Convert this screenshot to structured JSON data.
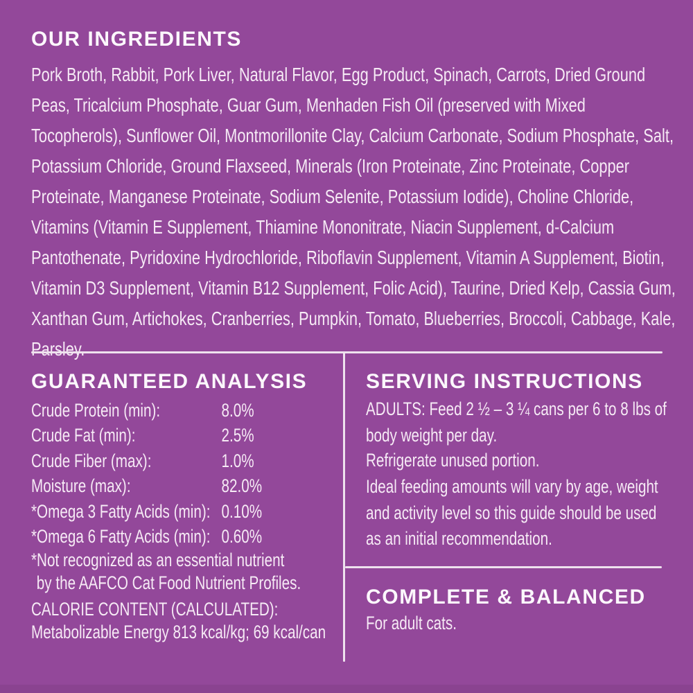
{
  "colors": {
    "background_purple": "#93489A",
    "body_text": "#F6EAF5",
    "heading_text": "#FCF7FC",
    "divider": "#EFE2EE",
    "bottom_edge_shade": "#8A4390"
  },
  "ingredients": {
    "heading": "OUR INGREDIENTS",
    "text": "Pork Broth, Rabbit, Pork Liver, Natural Flavor, Egg Product, Spinach, Carrots, Dried Ground Peas, Tricalcium Phosphate, Guar Gum, Menhaden Fish Oil (preserved with Mixed Tocopherols), Sunflower Oil, Montmorillonite Clay, Calcium Carbonate, Sodium Phosphate, Salt, Potassium Chloride, Ground Flaxseed, Minerals (Iron Proteinate, Zinc Proteinate, Copper Proteinate, Manganese Proteinate, Sodium Selenite, Potassium Iodide), Choline Chloride, Vitamins (Vitamin E Supplement, Thiamine Mononitrate, Niacin Supplement, d-Calcium Pantothenate, Pyridoxine Hydrochloride, Riboflavin Supplement, Vitamin A Supplement, Biotin, Vitamin D3 Supplement, Vitamin B12 Supplement, Folic Acid), Taurine, Dried Kelp, Cassia Gum, Xanthan Gum, Artichokes, Cranberries, Pumpkin, Tomato, Blueberries, Broccoli, Cabbage, Kale, Parsley."
  },
  "guaranteed_analysis": {
    "heading": "GUARANTEED ANALYSIS",
    "rows": [
      {
        "label": "Crude Protein (min):",
        "value": "8.0%"
      },
      {
        "label": "Crude Fat (min):",
        "value": "2.5%"
      },
      {
        "label": "Crude Fiber (max):",
        "value": "1.0%"
      },
      {
        "label": "Moisture (max):",
        "value": "82.0%"
      },
      {
        "label": "*Omega 3 Fatty Acids (min):",
        "value": "0.10%"
      },
      {
        "label": "*Omega 6 Fatty Acids (min):",
        "value": "0.60%"
      }
    ],
    "footnote_line1": "*Not recognized as an essential nutrient",
    "footnote_line2": "by the AAFCO Cat Food Nutrient Profiles.",
    "calorie_heading": "CALORIE CONTENT (CALCULATED):",
    "calorie_text": "Metabolizable Energy 813 kcal/kg; 69 kcal/can"
  },
  "serving_instructions": {
    "heading": "SERVING INSTRUCTIONS",
    "adults": "ADULTS: Feed 2 ½ – 3 ¼ cans per 6 to 8 lbs of body weight per day.",
    "refrigerate": "Refrigerate unused portion.",
    "ideal": "Ideal feeding amounts will vary by age, weight and activity level so this guide should be used as an initial recommendation."
  },
  "complete_balanced": {
    "heading": "COMPLETE & BALANCED",
    "text": "For adult cats."
  }
}
